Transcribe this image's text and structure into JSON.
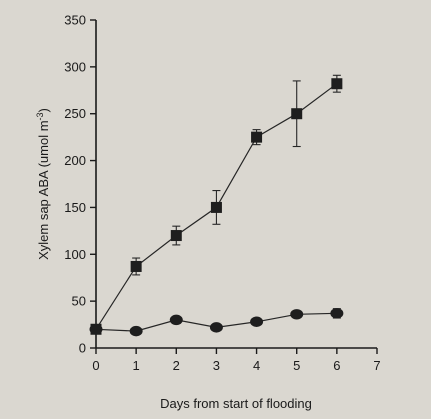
{
  "chart_data": {
    "type": "line",
    "xlabel": "Days from start of flooding",
    "ylabel": "Xylem sap ABA (umol m",
    "ylabel_sup": "-3",
    "ylabel_close": ")",
    "xlim": [
      0,
      7
    ],
    "ylim": [
      0,
      350
    ],
    "x_ticks": [
      "0",
      "1",
      "2",
      "3",
      "4",
      "5",
      "6",
      "7"
    ],
    "y_ticks": [
      "0",
      "50",
      "100",
      "150",
      "200",
      "250",
      "300",
      "350"
    ],
    "grid": false,
    "legend": "none",
    "series": [
      {
        "marker": "square",
        "x": [
          0,
          1,
          2,
          3,
          4,
          5,
          6
        ],
        "y": [
          20,
          87,
          120,
          150,
          225,
          250,
          282
        ],
        "err": [
          0,
          9,
          10,
          18,
          8,
          35,
          9
        ]
      },
      {
        "marker": "circle",
        "x": [
          0,
          1,
          2,
          3,
          4,
          5,
          6
        ],
        "y": [
          20,
          18,
          30,
          22,
          28,
          36,
          37
        ],
        "err": [
          0,
          2,
          3,
          2,
          3,
          3,
          5
        ]
      }
    ]
  }
}
